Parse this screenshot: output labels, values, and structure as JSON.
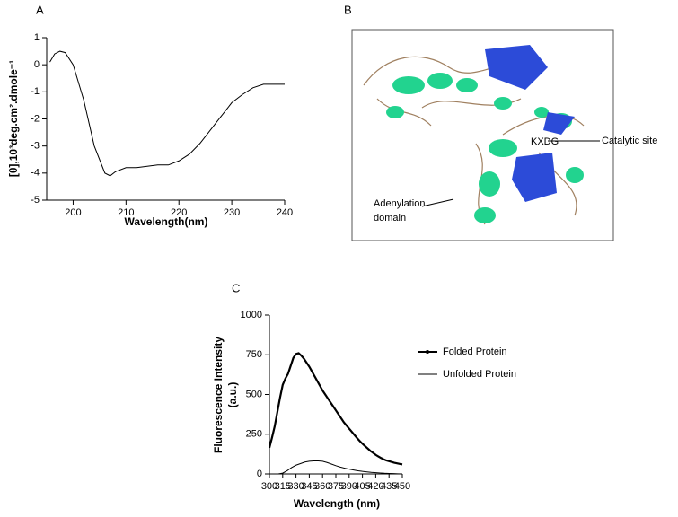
{
  "chart_data": [
    {
      "type": "line",
      "panel_label": "A",
      "xlabel": "Wavelength(nm)",
      "ylabel": "[θ],10³deg.cm².dmole⁻¹",
      "xlim": [
        195,
        240
      ],
      "ylim": [
        -5,
        1
      ],
      "xticks": [
        200,
        210,
        220,
        230,
        240
      ],
      "yticks": [
        -5,
        -4,
        -3,
        -2,
        -1,
        0,
        1
      ],
      "series": [
        {
          "color": "#000000",
          "x": [
            195.6,
            196.5,
            197.5,
            198.5,
            200,
            202,
            204,
            206,
            207,
            208,
            210,
            212,
            214,
            216,
            218,
            220,
            222,
            224,
            226,
            228,
            230,
            232,
            234,
            236,
            238,
            240
          ],
          "values": [
            0.1,
            0.4,
            0.5,
            0.45,
            0,
            -1.3,
            -3,
            -4.0,
            -4.1,
            -3.95,
            -3.8,
            -3.8,
            -3.75,
            -3.7,
            -3.7,
            -3.55,
            -3.3,
            -2.9,
            -2.4,
            -1.9,
            -1.4,
            -1.1,
            -0.85,
            -0.72,
            -0.72,
            -0.72
          ]
        }
      ]
    },
    {
      "type": "line",
      "panel_label": "C",
      "xlabel": "Wavelength (nm)",
      "ylabel": [
        "Fluorescence Intensity",
        "(a.u.)"
      ],
      "xlim": [
        300,
        450
      ],
      "ylim": [
        0,
        1000
      ],
      "xticks": [
        300,
        315,
        330,
        345,
        360,
        375,
        390,
        405,
        420,
        435,
        450
      ],
      "yticks": [
        0,
        250,
        500,
        750,
        1000
      ],
      "series": [
        {
          "name": "Folded Protein",
          "color": "#000000",
          "x": [
            300,
            303,
            306,
            309,
            312,
            315,
            318,
            321,
            324,
            327,
            330,
            333,
            336,
            339,
            342,
            345,
            348,
            351,
            354,
            357,
            360,
            363,
            366,
            369,
            372,
            375,
            378,
            381,
            384,
            387,
            390,
            393,
            396,
            399,
            402,
            405,
            408,
            411,
            414,
            417,
            420,
            423,
            426,
            429,
            432,
            435,
            438,
            441,
            444,
            447,
            450
          ],
          "values": [
            165,
            230,
            300,
            390,
            480,
            560,
            600,
            630,
            680,
            730,
            755,
            760,
            745,
            725,
            700,
            675,
            645,
            615,
            585,
            555,
            525,
            500,
            475,
            450,
            425,
            400,
            375,
            350,
            325,
            305,
            285,
            265,
            245,
            225,
            207,
            190,
            175,
            160,
            145,
            133,
            120,
            110,
            100,
            92,
            85,
            80,
            75,
            70,
            67,
            63,
            60
          ]
        },
        {
          "name": "Unfolded Protein",
          "color": "#000000",
          "x": [
            310,
            315,
            320,
            325,
            330,
            335,
            340,
            345,
            350,
            355,
            360,
            365,
            370,
            375,
            380,
            385,
            390,
            395,
            400,
            405,
            410,
            415,
            420,
            425,
            430,
            435,
            440,
            445,
            450
          ],
          "values": [
            0,
            5,
            20,
            40,
            55,
            65,
            75,
            80,
            82,
            82,
            80,
            72,
            62,
            52,
            43,
            36,
            30,
            25,
            20,
            16,
            13,
            10,
            8,
            6,
            4,
            3,
            2,
            1,
            0
          ]
        }
      ]
    }
  ],
  "panel_b": {
    "panel_label": "B",
    "motif": "KXDG",
    "site": "Catalytic site",
    "domain": [
      "Adenylation",
      "domain"
    ]
  }
}
